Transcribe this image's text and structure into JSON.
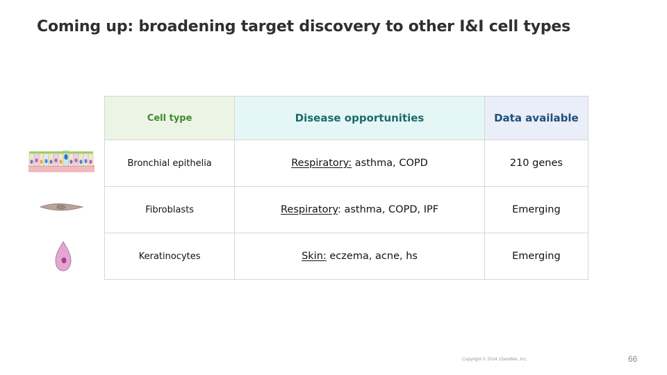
{
  "title": "Coming up: broadening target discovery to other I&I cell types",
  "table": {
    "headers": [
      "Cell type",
      "Disease opportunities",
      "Data available"
    ],
    "rows": [
      {
        "cell_type": "Bronchial epithelia",
        "disease_category": "Respiratory:",
        "disease_list": " asthma, COPD",
        "data_available": "210 genes",
        "icon": "bronchial-epithelia-icon"
      },
      {
        "cell_type": "Fibroblasts",
        "disease_category": "Respiratory",
        "disease_list": ": asthma, COPD, IPF",
        "data_available": "Emerging",
        "icon": "fibroblast-icon"
      },
      {
        "cell_type": "Keratinocytes",
        "disease_category": "Skin:",
        "disease_list": " eczema, acne, hs",
        "data_available": "Emerging",
        "icon": "keratinocyte-icon"
      }
    ]
  },
  "colors": {
    "header_cell_type_bg": "#ecf4e6",
    "header_cell_type_text": "#3e8a2c",
    "header_disease_bg": "#e5f6f6",
    "header_disease_text": "#1e6a6a",
    "header_data_bg": "#eaeef8",
    "header_data_text": "#1f4f7a"
  },
  "footer": {
    "copyright": "Copyright © 2024 23andMe, Inc.",
    "page_number": "66"
  }
}
